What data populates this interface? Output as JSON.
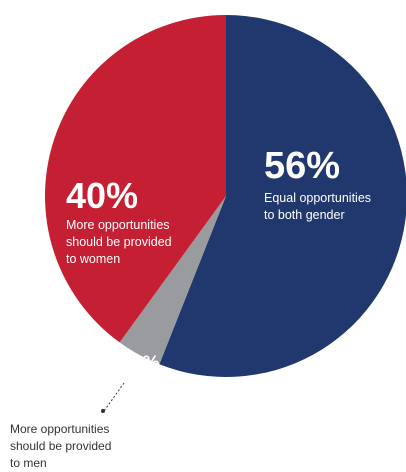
{
  "chart_data": {
    "type": "pie",
    "title": "",
    "slices": [
      {
        "value": 56,
        "label_pct": "56%",
        "label_lines": [
          "Equal opportunities",
          "to both gender"
        ],
        "color": "#21386e"
      },
      {
        "value": 4,
        "label_pct": "4%",
        "label_lines": [
          "More opportunities",
          "should be provided",
          "to men"
        ],
        "color": "#9a9b9e"
      },
      {
        "value": 40,
        "label_pct": "40%",
        "label_lines": [
          "More opportunities",
          "should be provided",
          "to women"
        ],
        "color": "#c41f33"
      }
    ]
  }
}
